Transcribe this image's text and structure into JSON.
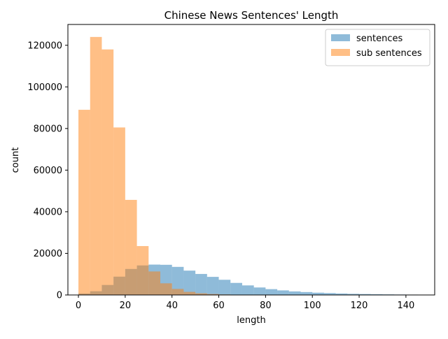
{
  "chart_data": {
    "type": "bar",
    "title": "Chinese News Sentences' Length",
    "xlabel": "length",
    "ylabel": "count",
    "xlim": [
      -4.5,
      152.3
    ],
    "ylim": [
      0,
      130000
    ],
    "x_ticks": [
      0,
      20,
      40,
      60,
      80,
      100,
      120,
      140
    ],
    "y_ticks": [
      0,
      20000,
      40000,
      60000,
      80000,
      100000,
      120000
    ],
    "grid": false,
    "legend_position": "top-right",
    "bin_width": 5,
    "series": [
      {
        "name": "sentences",
        "color": "#1f77b4",
        "opacity": 0.5,
        "bin_starts": [
          0,
          5,
          10,
          15,
          20,
          25,
          30,
          35,
          40,
          45,
          50,
          55,
          60,
          65,
          70,
          75,
          80,
          85,
          90,
          95,
          100,
          105,
          110,
          115,
          120,
          125,
          130,
          135,
          140
        ],
        "values": [
          700,
          1800,
          4800,
          8800,
          12500,
          14200,
          14600,
          14500,
          13500,
          11700,
          10100,
          8700,
          7300,
          5800,
          4600,
          3600,
          2800,
          2200,
          1700,
          1400,
          1100,
          900,
          700,
          550,
          450,
          350,
          280,
          220,
          180
        ]
      },
      {
        "name": "sub sentences",
        "color": "#ff7f0e",
        "opacity": 0.5,
        "bin_starts": [
          0,
          5,
          10,
          15,
          20,
          25,
          30,
          35,
          40,
          45,
          50,
          55,
          60,
          65,
          70,
          75,
          80,
          85
        ],
        "values": [
          89000,
          124000,
          118000,
          80500,
          45700,
          23500,
          11300,
          5600,
          2900,
          1500,
          800,
          450,
          250,
          150,
          100,
          60,
          40,
          20
        ]
      }
    ]
  }
}
